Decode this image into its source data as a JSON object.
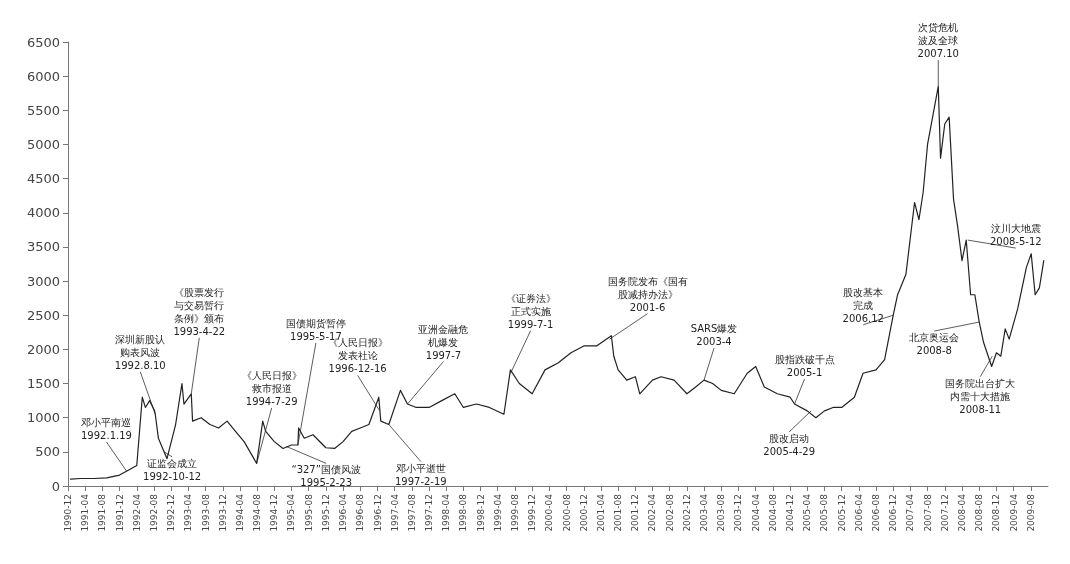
{
  "chart_data": {
    "type": "line",
    "marker": "none",
    "line_style": "solid",
    "grid": false,
    "ylim": [
      0,
      6500
    ],
    "yticks": [
      0,
      500,
      1000,
      1500,
      2000,
      2500,
      3000,
      3500,
      4000,
      4500,
      5000,
      5500,
      6000,
      6500
    ],
    "xlim": [
      "1990-12",
      "2009-12"
    ],
    "xticks": [
      "1990-12",
      "1991-04",
      "1991-08",
      "1991-12",
      "1992-04",
      "1992-08",
      "1992-12",
      "1993-04",
      "1993-08",
      "1993-12",
      "1994-04",
      "1994-08",
      "1994-12",
      "1995-04",
      "1995-08",
      "1995-12",
      "1996-04",
      "1996-08",
      "1996-12",
      "1997-04",
      "1997-08",
      "1997-12",
      "1998-04",
      "1998-08",
      "1998-12",
      "1999-04",
      "1999-08",
      "1999-12",
      "2000-04",
      "2000-08",
      "2000-12",
      "2001-04",
      "2001-08",
      "2001-12",
      "2002-04",
      "2002-08",
      "2002-12",
      "2003-04",
      "2003-08",
      "2003-12",
      "2004-04",
      "2004-08",
      "2004-12",
      "2005-04",
      "2005-08",
      "2005-12",
      "2006-04",
      "2006-08",
      "2006-12",
      "2007-04",
      "2007-08",
      "2007-12",
      "2008-04",
      "2008-08",
      "2008-12",
      "2009-04",
      "2009-08"
    ],
    "series": [
      {
        "color": "#222222",
        "x": [
          "1990-12-19",
          "1991-03",
          "1991-06",
          "1991-09",
          "1991-12",
          "1992-02",
          "1992-04",
          "1992-05-10",
          "1992-06",
          "1992-07",
          "1992-08-05",
          "1992-08-10",
          "1992-09",
          "1992-11",
          "1993-01",
          "1993-02-15",
          "1993-03",
          "1993-04-22",
          "1993-05",
          "1993-07",
          "1993-09",
          "1993-11",
          "1994-01",
          "1994-03",
          "1994-05",
          "1994-07-29",
          "1994-09-10",
          "1994-10",
          "1994-12",
          "1995-02",
          "1995-04",
          "1995-05-17",
          "1995-05-22",
          "1995-07",
          "1995-09",
          "1995-12",
          "1996-02",
          "1996-04",
          "1996-06",
          "1996-08",
          "1996-10",
          "1996-12-10",
          "1996-12-24",
          "1997-02-19",
          "1997-05-12",
          "1997-07",
          "1997-09",
          "1997-12",
          "1998-03",
          "1998-06",
          "1998-08",
          "1998-11",
          "1999-02",
          "1999-05-15",
          "1999-06-30",
          "1999-09",
          "1999-12",
          "2000-03",
          "2000-06",
          "2000-09",
          "2000-12",
          "2001-03",
          "2001-06-14",
          "2001-07",
          "2001-08",
          "2001-10",
          "2001-12",
          "2002-01",
          "2002-04",
          "2002-06",
          "2002-09",
          "2002-12",
          "2003-02",
          "2003-04",
          "2003-06",
          "2003-08",
          "2003-11",
          "2004-02",
          "2004-04",
          "2004-06",
          "2004-09",
          "2004-12",
          "2005-01",
          "2005-04",
          "2005-06",
          "2005-08",
          "2005-10",
          "2005-12",
          "2006-03",
          "2006-05",
          "2006-08",
          "2006-10",
          "2006-12",
          "2007-01",
          "2007-03",
          "2007-05",
          "2007-06",
          "2007-07",
          "2007-08",
          "2007-10-16",
          "2007-11",
          "2007-12",
          "2008-01",
          "2008-02",
          "2008-03",
          "2008-04",
          "2008-05",
          "2008-06",
          "2008-07",
          "2008-08",
          "2008-09",
          "2008-10-28",
          "2008-12",
          "2009-01",
          "2009-02",
          "2009-03",
          "2009-05",
          "2009-07",
          "2009-08-04",
          "2009-09",
          "2009-10",
          "2009-11"
        ],
        "values": [
          100,
          110,
          110,
          120,
          160,
          230,
          300,
          1300,
          1150,
          1250,
          1100,
          1050,
          700,
          400,
          900,
          1500,
          1200,
          1350,
          950,
          1000,
          900,
          850,
          950,
          800,
          650,
          330,
          950,
          800,
          650,
          550,
          600,
          600,
          850,
          700,
          750,
          560,
          550,
          650,
          800,
          850,
          900,
          1300,
          950,
          900,
          1400,
          1200,
          1150,
          1150,
          1250,
          1350,
          1150,
          1200,
          1150,
          1050,
          1700,
          1500,
          1350,
          1700,
          1800,
          1950,
          2050,
          2050,
          2200,
          1900,
          1700,
          1550,
          1600,
          1350,
          1550,
          1600,
          1550,
          1350,
          1450,
          1550,
          1500,
          1400,
          1350,
          1650,
          1750,
          1450,
          1350,
          1300,
          1200,
          1100,
          1000,
          1100,
          1150,
          1150,
          1300,
          1650,
          1700,
          1850,
          2500,
          2800,
          3100,
          4150,
          3900,
          4300,
          5000,
          5850,
          4800,
          5300,
          5400,
          4200,
          3800,
          3300,
          3600,
          2800,
          2800,
          2400,
          2100,
          1750,
          1950,
          1900,
          2300,
          2150,
          2600,
          3200,
          3400,
          2800,
          2900,
          3300
        ]
      }
    ],
    "annotations": [
      {
        "text": "邓小平南巡\n1992.1.19",
        "x": "1992-01-19",
        "y": 220
      },
      {
        "text": "深圳新股认购表风波\n1992.8.10",
        "x": "1992-08-10",
        "y": 1050
      },
      {
        "text": "证监会成立\n1992-10-12",
        "x": "1992-10-12",
        "y": 500
      },
      {
        "text": "《股票发行与交易暂行条例》颁布\n1993-4-22",
        "x": "1993-04-22",
        "y": 1350
      },
      {
        "text": "《人民日报》救市报道\n1994-7-29",
        "x": "1994-07-29",
        "y": 330
      },
      {
        "text": "国债期货暂停\n1995-5-17",
        "x": "1995-05-17",
        "y": 600
      },
      {
        "text": "“327”国债风波\n1995-2-23",
        "x": "1995-02-23",
        "y": 580
      },
      {
        "text": "《人民日报》发表社论\n1996-12-16",
        "x": "1996-12-16",
        "y": 1100
      },
      {
        "text": "邓小平逝世\n1997-2-19",
        "x": "1997-02-19",
        "y": 900
      },
      {
        "text": "亚洲金融危机爆发\n1997-7",
        "x": "1997-07",
        "y": 1200
      },
      {
        "text": "《证券法》正式实施\n1999-7-1",
        "x": "1999-07-01",
        "y": 1650
      },
      {
        "text": "国务院发布《国有股减持办法》\n2001-6",
        "x": "2001-06",
        "y": 2150
      },
      {
        "text": "SARS爆发\n2003-4",
        "x": "2003-04",
        "y": 1550
      },
      {
        "text": "股指跌破千点\n2005-1",
        "x": "2005-01",
        "y": 1200
      },
      {
        "text": "股改启动\n2005-4-29",
        "x": "2005-04-29",
        "y": 1100
      },
      {
        "text": "股改基本完成\n2006.12",
        "x": "2006-12",
        "y": 2500
      },
      {
        "text": "次贷危机波及全球\n2007.10",
        "x": "2007-10-16",
        "y": 5850
      },
      {
        "text": "汶川大地震\n2008-5-12",
        "x": "2008-05-12",
        "y": 3600
      },
      {
        "text": "北京奥运会\n2008-8",
        "x": "2008-08",
        "y": 2400
      },
      {
        "text": "国务院出台扩大内需十大措施\n2008-11",
        "x": "2008-11",
        "y": 1900
      }
    ]
  }
}
